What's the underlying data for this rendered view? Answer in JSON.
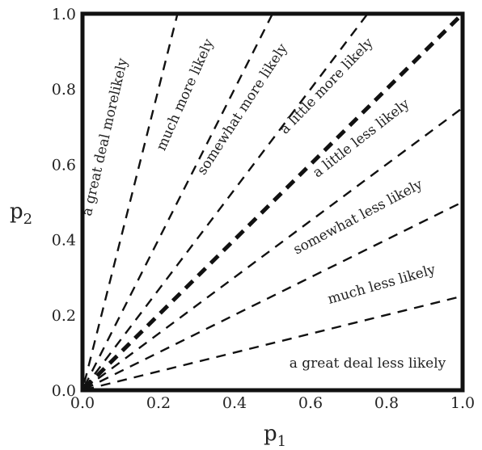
{
  "chart_data": {
    "type": "line",
    "x_axis": {
      "symbol": "p",
      "subscript": "1",
      "ticks": [
        "0.0",
        "0.2",
        "0.4",
        "0.6",
        "0.8",
        "1.0"
      ],
      "range": [
        0,
        1
      ]
    },
    "y_axis": {
      "symbol": "p",
      "subscript": "2",
      "ticks": [
        "0.0",
        "0.2",
        "0.4",
        "0.6",
        "0.8",
        "1.0"
      ],
      "range": [
        0,
        1
      ]
    },
    "grid": false,
    "series": [
      {
        "slope": 4.0,
        "style": "dashed"
      },
      {
        "slope": 2.0,
        "style": "dashed"
      },
      {
        "slope": 1.333,
        "style": "dashed"
      },
      {
        "slope": 1.0,
        "style": "dashed-bold"
      },
      {
        "slope": 0.75,
        "style": "dashed"
      },
      {
        "slope": 0.5,
        "style": "dashed"
      },
      {
        "slope": 0.25,
        "style": "dashed"
      }
    ],
    "region_labels": [
      {
        "text": "a great deal morelikely",
        "x": 0.07,
        "y": 0.67,
        "angle": 77
      },
      {
        "text": "much more likely",
        "x": 0.28,
        "y": 0.78,
        "angle": 66
      },
      {
        "text": "somewhat more likely",
        "x": 0.43,
        "y": 0.74,
        "angle": 57
      },
      {
        "text": "a little more likely",
        "x": 0.65,
        "y": 0.8,
        "angle": 46
      },
      {
        "text": "a little less likely",
        "x": 0.74,
        "y": 0.66,
        "angle": 38
      },
      {
        "text": "somewhat less likely",
        "x": 0.73,
        "y": 0.45,
        "angle": 28
      },
      {
        "text": "much less likely",
        "x": 0.79,
        "y": 0.27,
        "angle": 16
      },
      {
        "text": "a great deal less likely",
        "x": 0.75,
        "y": 0.06,
        "angle": 0
      }
    ]
  }
}
